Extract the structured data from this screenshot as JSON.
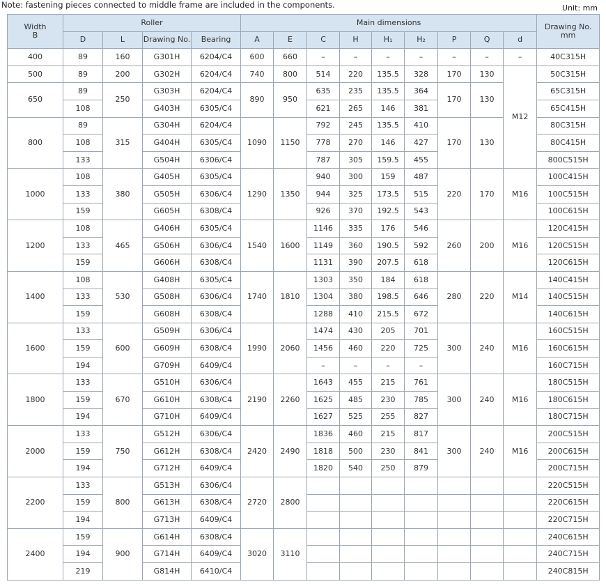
{
  "note": "Note: fastening pieces connected to middle frame are included in the components.",
  "unit": "Unit: mm",
  "header": {
    "width": [
      "Width",
      "B"
    ],
    "roller": "Roller",
    "main": "Main dimensions",
    "drawing_no": [
      "Drawing No.",
      "mm"
    ],
    "sub": [
      "D",
      "L",
      "Drawing No.",
      "Bearing",
      "A",
      "E",
      "C",
      "H",
      "H₁",
      "H₂",
      "P",
      "Q",
      "d"
    ]
  },
  "groups": [
    {
      "width": 400,
      "L": 160,
      "A": 600,
      "E": 660,
      "P": "–",
      "Q": "–",
      "d": "–",
      "rows": [
        {
          "D": 89,
          "drawing": "G301H",
          "bearing": "6204/C4",
          "C": "–",
          "H": "–",
          "H1": "–",
          "H2": "–",
          "no": "40C315H"
        }
      ]
    },
    {
      "width": 500,
      "L": 200,
      "A": 740,
      "E": 800,
      "P": 170,
      "Q": 130,
      "d": "M12",
      "rows": [
        {
          "D": 89,
          "drawing": "G302H",
          "bearing": "6204/C4",
          "C": 514,
          "H": 220,
          "H1": 135.5,
          "H2": 328,
          "no": "50C315H"
        }
      ]
    },
    {
      "width": 650,
      "L": 250,
      "A": 890,
      "E": 950,
      "P": 170,
      "Q": 130,
      "rows": [
        {
          "D": 89,
          "drawing": "G303H",
          "bearing": "6204/C4",
          "C": 635,
          "H": 235,
          "H1": 135.5,
          "H2": 364,
          "no": "65C315H"
        },
        {
          "D": 108,
          "drawing": "G403H",
          "bearing": "6305/C4",
          "C": 621,
          "H": 265,
          "H1": 146,
          "H2": 381,
          "no": "65C415H"
        }
      ]
    },
    {
      "width": 800,
      "L": 315,
      "A": 1090,
      "E": 1150,
      "P": 170,
      "Q": 130,
      "rows": [
        {
          "D": 89,
          "drawing": "G304H",
          "bearing": "6204/C4",
          "C": 792,
          "H": 245,
          "H1": 135.5,
          "H2": 410,
          "no": "80C315H"
        },
        {
          "D": 108,
          "drawing": "G404H",
          "bearing": "6305/C4",
          "C": 778,
          "H": 270,
          "H1": 146,
          "H2": 427,
          "no": "80C415H"
        },
        {
          "D": 133,
          "drawing": "G504H",
          "bearing": "6306/C4",
          "C": 787,
          "H": 305,
          "H1": 159.5,
          "H2": 455,
          "no": "800C515H"
        }
      ]
    },
    {
      "width": 1000,
      "L": 380,
      "A": 1290,
      "E": 1350,
      "P": 220,
      "Q": 170,
      "d": "M16",
      "rows": [
        {
          "D": 108,
          "drawing": "G405H",
          "bearing": "6305/C4",
          "C": 940,
          "H": 300,
          "H1": 159,
          "H2": 487,
          "no": "100C415H"
        },
        {
          "D": 133,
          "drawing": "G505H",
          "bearing": "6306/C4",
          "C": 944,
          "H": 325,
          "H1": 173.5,
          "H2": 515,
          "no": "100C515H"
        },
        {
          "D": 159,
          "drawing": "G605H",
          "bearing": "6308/C4",
          "C": 926,
          "H": 370,
          "H1": 192.5,
          "H2": 543,
          "no": "100C615H"
        }
      ]
    },
    {
      "width": 1200,
      "L": 465,
      "A": 1540,
      "E": 1600,
      "P": 260,
      "Q": 200,
      "d": "M16",
      "rows": [
        {
          "D": 108,
          "drawing": "G406H",
          "bearing": "6305/C4",
          "C": 1146,
          "H": 335,
          "H1": 176,
          "H2": 546,
          "no": "120C415H"
        },
        {
          "D": 133,
          "drawing": "G506H",
          "bearing": "6306/C4",
          "C": 1149,
          "H": 360,
          "H1": 190.5,
          "H2": 592,
          "no": "120C515H"
        },
        {
          "D": 159,
          "drawing": "G606H",
          "bearing": "6308/C4",
          "C": 1131,
          "H": 390,
          "H1": 207.5,
          "H2": 618,
          "no": "120C615H"
        }
      ]
    },
    {
      "width": 1400,
      "L": 530,
      "A": 1740,
      "E": 1810,
      "P": 280,
      "Q": 220,
      "d": "M14",
      "rows": [
        {
          "D": 108,
          "drawing": "G408H",
          "bearing": "6305/C4",
          "C": 1303,
          "H": 350,
          "H1": 184,
          "H2": 618,
          "no": "140C415H"
        },
        {
          "D": 133,
          "drawing": "G508H",
          "bearing": "6306/C4",
          "C": 1304,
          "H": 380,
          "H1": 198.5,
          "H2": 646,
          "no": "140C515H"
        },
        {
          "D": 159,
          "drawing": "G608H",
          "bearing": "6308/C4",
          "C": 1288,
          "H": 410,
          "H1": 215.5,
          "H2": 672,
          "no": "140C615H"
        }
      ]
    },
    {
      "width": 1600,
      "L": 600,
      "A": 1990,
      "E": 2060,
      "P": 300,
      "Q": 240,
      "d": "M16",
      "rows": [
        {
          "D": 133,
          "drawing": "G509H",
          "bearing": "6306/C4",
          "C": 1474,
          "H": 430,
          "H1": 205,
          "H2": 701,
          "no": "160C515H"
        },
        {
          "D": 159,
          "drawing": "G609H",
          "bearing": "6308/C4",
          "C": 1456,
          "H": 460,
          "H1": 220,
          "H2": 725,
          "no": "160C615H"
        },
        {
          "D": 194,
          "drawing": "G709H",
          "bearing": "6409/C4",
          "C": "–",
          "H": "–",
          "H1": "–",
          "H2": "–",
          "no": "160C715H"
        }
      ]
    },
    {
      "width": 1800,
      "L": 670,
      "A": 2190,
      "E": 2260,
      "P": 300,
      "Q": 240,
      "d": "M16",
      "rows": [
        {
          "D": 133,
          "drawing": "G510H",
          "bearing": "6306/C4",
          "C": 1643,
          "H": 455,
          "H1": 215,
          "H2": 761,
          "no": "180C515H"
        },
        {
          "D": 159,
          "drawing": "G610H",
          "bearing": "6308/C4",
          "C": 1625,
          "H": 485,
          "H1": 230,
          "H2": 785,
          "no": "180C615H"
        },
        {
          "D": 194,
          "drawing": "G710H",
          "bearing": "6409/C4",
          "C": 1627,
          "H": 525,
          "H1": 255,
          "H2": 827,
          "no": "180C715H"
        }
      ]
    },
    {
      "width": 2000,
      "L": 750,
      "A": 2420,
      "E": 2490,
      "P": 300,
      "Q": 240,
      "d": "M16",
      "rows": [
        {
          "D": 133,
          "drawing": "G512H",
          "bearing": "6306/C4",
          "C": 1836,
          "H": 460,
          "H1": 215,
          "H2": 817,
          "no": "200C515H"
        },
        {
          "D": 159,
          "drawing": "G612H",
          "bearing": "6308/C4",
          "C": 1818,
          "H": 500,
          "H1": 230,
          "H2": 841,
          "no": "200C615H"
        },
        {
          "D": 194,
          "drawing": "G712H",
          "bearing": "6409/C4",
          "C": 1820,
          "H": 540,
          "H1": 250,
          "H2": 879,
          "no": "200C715H"
        }
      ]
    },
    {
      "width": 2200,
      "L": 800,
      "A": 2720,
      "E": 2800,
      "rows": [
        {
          "D": 133,
          "drawing": "G513H",
          "bearing": "6306/C4",
          "no": "220C515H"
        },
        {
          "D": 159,
          "drawing": "G613H",
          "bearing": "6308/C4",
          "no": "220C615H"
        },
        {
          "D": 194,
          "drawing": "G713H",
          "bearing": "6409/C4",
          "no": "220C715H"
        }
      ]
    },
    {
      "width": 2400,
      "L": 900,
      "A": 3020,
      "E": 3110,
      "rows": [
        {
          "D": 159,
          "drawing": "G614H",
          "bearing": "6308/C4",
          "no": "240C615H"
        },
        {
          "D": 194,
          "drawing": "G714H",
          "bearing": "6409/C4",
          "no": "240C715H"
        },
        {
          "D": 219,
          "drawing": "G814H",
          "bearing": "6410/C4",
          "no": "240C815H"
        }
      ]
    }
  ]
}
